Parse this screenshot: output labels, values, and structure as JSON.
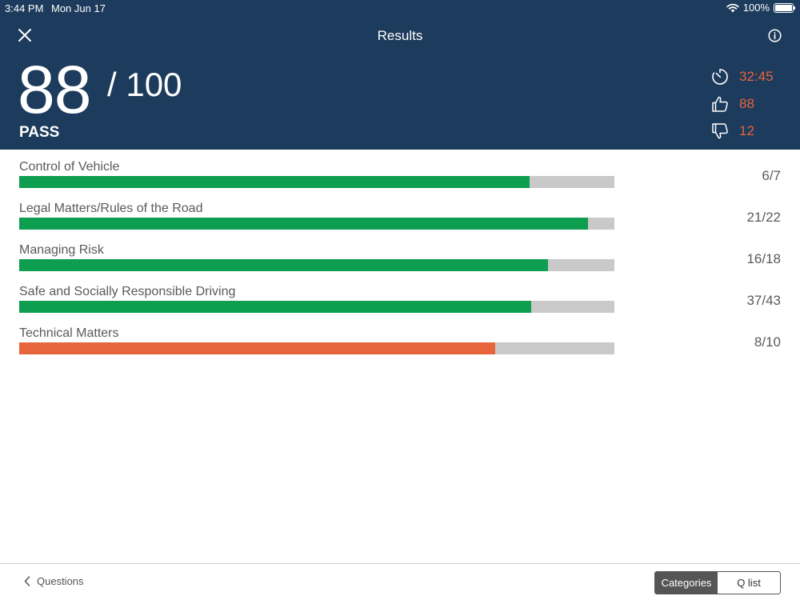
{
  "status": {
    "time": "3:44 PM",
    "date": "Mon Jun 17",
    "battery": "100%",
    "battery_level": 1.0
  },
  "nav": {
    "title": "Results"
  },
  "score": {
    "value": "88",
    "total": "/ 100",
    "result": "PASS"
  },
  "stats": {
    "time": "32:45",
    "correct": "88",
    "incorrect": "12"
  },
  "categories": [
    {
      "label": "Control of Vehicle",
      "score": "6/7",
      "fraction": 0.857,
      "status": "pass"
    },
    {
      "label": "Legal Matters/Rules of the Road",
      "score": "21/22",
      "fraction": 0.955,
      "status": "pass"
    },
    {
      "label": "Managing Risk",
      "score": "16/18",
      "fraction": 0.889,
      "status": "pass"
    },
    {
      "label": "Safe and Socially Responsible Driving",
      "score": "37/43",
      "fraction": 0.86,
      "status": "pass"
    },
    {
      "label": "Technical Matters",
      "score": "8/10",
      "fraction": 0.8,
      "status": "fail"
    }
  ],
  "colors": {
    "header": "#1d3b5c",
    "pass": "#0e9e4f",
    "fail": "#e8643a",
    "track": "#c9c9c9",
    "accent": "#e8643a"
  },
  "icons": {
    "close": "close-icon",
    "info": "info-icon",
    "timer": "timer-icon",
    "correct": "thumbs-up-icon",
    "incorrect": "thumbs-down-icon",
    "back": "chevron-left-icon"
  },
  "footer": {
    "back_label": "Questions",
    "tabs": [
      "Categories",
      "Q list"
    ],
    "active_tab": "Categories"
  }
}
